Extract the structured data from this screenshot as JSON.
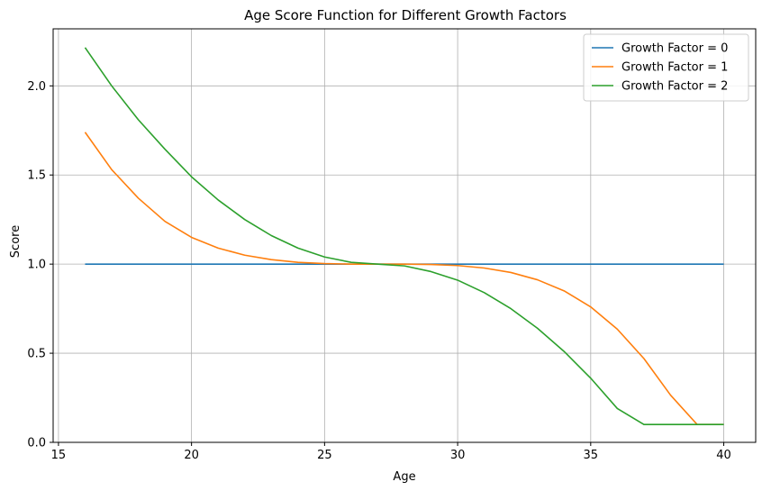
{
  "chart_data": {
    "type": "line",
    "title": "Age Score Function for Different Growth Factors",
    "xlabel": "Age",
    "ylabel": "Score",
    "xlim": [
      14.8,
      41.2
    ],
    "ylim": [
      0,
      2.32
    ],
    "xticks": [
      15,
      20,
      25,
      30,
      35,
      40
    ],
    "yticks": [
      0.0,
      0.5,
      1.0,
      1.5,
      2.0
    ],
    "xtick_labels": [
      "15",
      "20",
      "25",
      "30",
      "35",
      "40"
    ],
    "ytick_labels": [
      "0.0",
      "0.5",
      "1.0",
      "1.5",
      "2.0"
    ],
    "grid": true,
    "legend_position": "top-right",
    "x": [
      16,
      17,
      18,
      19,
      20,
      21,
      22,
      23,
      24,
      25,
      26,
      27,
      28,
      29,
      30,
      31,
      32,
      33,
      34,
      35,
      36,
      37,
      38,
      39,
      40
    ],
    "series": [
      {
        "name": "Growth Factor = 0",
        "color": "#1f77b4",
        "values": [
          1,
          1,
          1,
          1,
          1,
          1,
          1,
          1,
          1,
          1,
          1,
          1,
          1,
          1,
          1,
          1,
          1,
          1,
          1,
          1,
          1,
          1,
          1,
          1,
          1
        ]
      },
      {
        "name": "Growth Factor = 1",
        "color": "#ff7f0e",
        "values": [
          1.74,
          1.53,
          1.37,
          1.24,
          1.15,
          1.09,
          1.05,
          1.025,
          1.01,
          1.003,
          1.0,
          1.0,
          1.0,
          0.998,
          0.992,
          0.978,
          0.953,
          0.912,
          0.85,
          0.76,
          0.635,
          0.47,
          0.265,
          0.1,
          0.1
        ]
      },
      {
        "name": "Growth Factor = 2",
        "color": "#2ca02c",
        "values": [
          2.215,
          2.0,
          1.81,
          1.645,
          1.49,
          1.36,
          1.25,
          1.16,
          1.09,
          1.04,
          1.01,
          1.0,
          0.99,
          0.958,
          0.91,
          0.84,
          0.75,
          0.64,
          0.51,
          0.36,
          0.19,
          0.1,
          0.1,
          0.1,
          0.1
        ]
      }
    ]
  }
}
